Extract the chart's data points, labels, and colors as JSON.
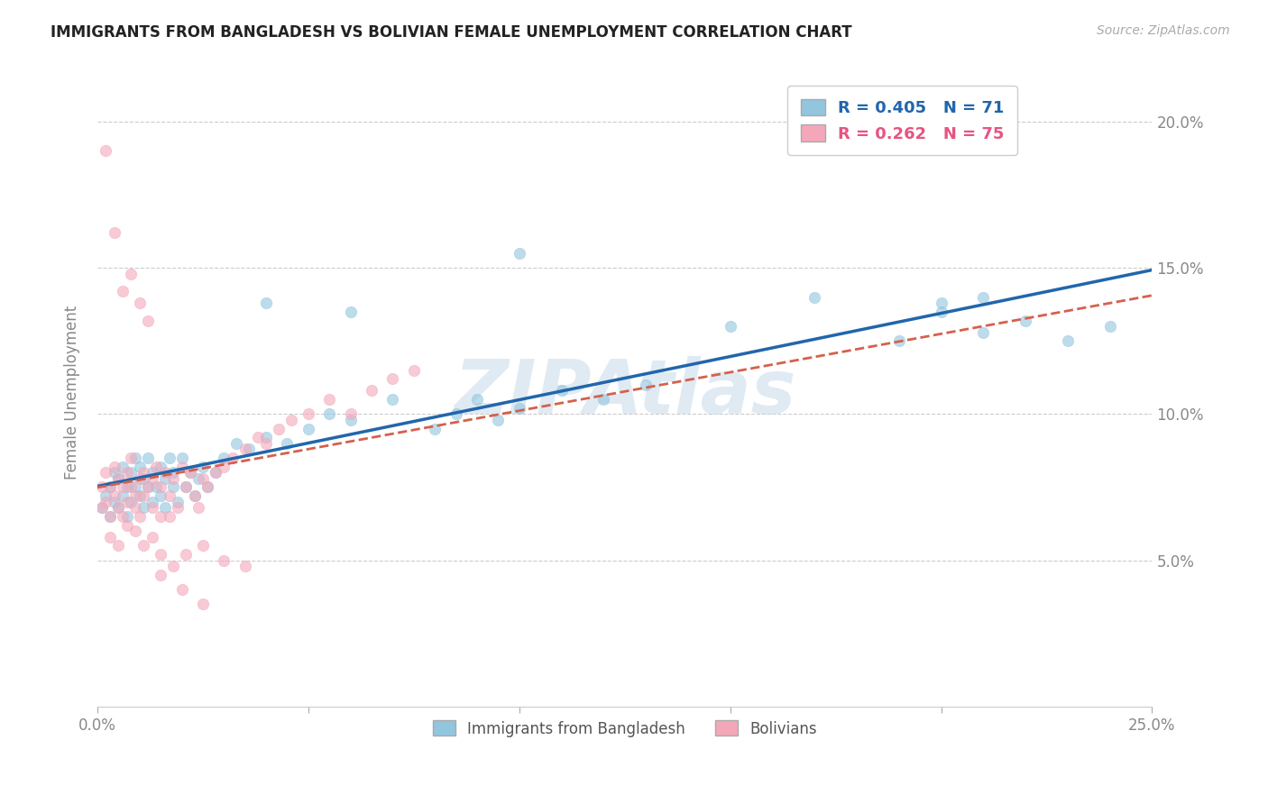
{
  "title": "IMMIGRANTS FROM BANGLADESH VS BOLIVIAN FEMALE UNEMPLOYMENT CORRELATION CHART",
  "source_text": "Source: ZipAtlas.com",
  "ylabel": "Female Unemployment",
  "x_min": 0.0,
  "x_max": 0.25,
  "y_min": 0.0,
  "y_max": 0.215,
  "x_ticks": [
    0.0,
    0.05,
    0.1,
    0.15,
    0.2,
    0.25
  ],
  "x_tick_labels": [
    "0.0%",
    "",
    "",
    "",
    "",
    "25.0%"
  ],
  "y_ticks": [
    0.05,
    0.1,
    0.15,
    0.2
  ],
  "y_tick_labels": [
    "5.0%",
    "10.0%",
    "15.0%",
    "20.0%"
  ],
  "blue_color": "#92c5de",
  "pink_color": "#f4a7b9",
  "blue_line_color": "#2166ac",
  "pink_line_color": "#d6604d",
  "watermark_color": "#c8daea",
  "blue_R": 0.405,
  "blue_N": 71,
  "pink_R": 0.262,
  "pink_N": 75,
  "blue_scatter_x": [
    0.001,
    0.002,
    0.003,
    0.003,
    0.004,
    0.004,
    0.005,
    0.005,
    0.006,
    0.006,
    0.007,
    0.007,
    0.008,
    0.008,
    0.009,
    0.009,
    0.01,
    0.01,
    0.011,
    0.011,
    0.012,
    0.012,
    0.013,
    0.013,
    0.014,
    0.015,
    0.015,
    0.016,
    0.016,
    0.017,
    0.018,
    0.018,
    0.019,
    0.02,
    0.021,
    0.022,
    0.023,
    0.024,
    0.025,
    0.026,
    0.028,
    0.03,
    0.033,
    0.036,
    0.04,
    0.045,
    0.05,
    0.055,
    0.06,
    0.07,
    0.08,
    0.085,
    0.09,
    0.095,
    0.1,
    0.11,
    0.12,
    0.13,
    0.15,
    0.17,
    0.19,
    0.2,
    0.21,
    0.22,
    0.23,
    0.24,
    0.04,
    0.06,
    0.1,
    0.2,
    0.21
  ],
  "blue_scatter_y": [
    0.068,
    0.072,
    0.075,
    0.065,
    0.07,
    0.08,
    0.068,
    0.078,
    0.072,
    0.082,
    0.075,
    0.065,
    0.08,
    0.07,
    0.075,
    0.085,
    0.072,
    0.082,
    0.068,
    0.078,
    0.075,
    0.085,
    0.07,
    0.08,
    0.075,
    0.072,
    0.082,
    0.078,
    0.068,
    0.085,
    0.075,
    0.08,
    0.07,
    0.085,
    0.075,
    0.08,
    0.072,
    0.078,
    0.082,
    0.075,
    0.08,
    0.085,
    0.09,
    0.088,
    0.092,
    0.09,
    0.095,
    0.1,
    0.098,
    0.105,
    0.095,
    0.1,
    0.105,
    0.098,
    0.102,
    0.108,
    0.105,
    0.11,
    0.13,
    0.14,
    0.125,
    0.135,
    0.128,
    0.132,
    0.125,
    0.13,
    0.138,
    0.135,
    0.155,
    0.138,
    0.14
  ],
  "pink_scatter_x": [
    0.001,
    0.001,
    0.002,
    0.002,
    0.003,
    0.003,
    0.004,
    0.004,
    0.005,
    0.005,
    0.006,
    0.006,
    0.007,
    0.007,
    0.008,
    0.008,
    0.009,
    0.009,
    0.01,
    0.01,
    0.011,
    0.011,
    0.012,
    0.013,
    0.013,
    0.014,
    0.015,
    0.015,
    0.016,
    0.017,
    0.017,
    0.018,
    0.019,
    0.02,
    0.021,
    0.022,
    0.023,
    0.024,
    0.025,
    0.026,
    0.028,
    0.03,
    0.032,
    0.035,
    0.038,
    0.04,
    0.043,
    0.046,
    0.05,
    0.055,
    0.06,
    0.065,
    0.07,
    0.075,
    0.003,
    0.005,
    0.007,
    0.009,
    0.011,
    0.013,
    0.015,
    0.018,
    0.021,
    0.025,
    0.03,
    0.035,
    0.002,
    0.004,
    0.006,
    0.008,
    0.01,
    0.012,
    0.015,
    0.02,
    0.025
  ],
  "pink_scatter_y": [
    0.075,
    0.068,
    0.08,
    0.07,
    0.075,
    0.065,
    0.072,
    0.082,
    0.068,
    0.078,
    0.075,
    0.065,
    0.08,
    0.07,
    0.075,
    0.085,
    0.072,
    0.068,
    0.078,
    0.065,
    0.08,
    0.072,
    0.075,
    0.068,
    0.078,
    0.082,
    0.075,
    0.065,
    0.08,
    0.072,
    0.065,
    0.078,
    0.068,
    0.082,
    0.075,
    0.08,
    0.072,
    0.068,
    0.078,
    0.075,
    0.08,
    0.082,
    0.085,
    0.088,
    0.092,
    0.09,
    0.095,
    0.098,
    0.1,
    0.105,
    0.1,
    0.108,
    0.112,
    0.115,
    0.058,
    0.055,
    0.062,
    0.06,
    0.055,
    0.058,
    0.052,
    0.048,
    0.052,
    0.055,
    0.05,
    0.048,
    0.19,
    0.162,
    0.142,
    0.148,
    0.138,
    0.132,
    0.045,
    0.04,
    0.035
  ]
}
